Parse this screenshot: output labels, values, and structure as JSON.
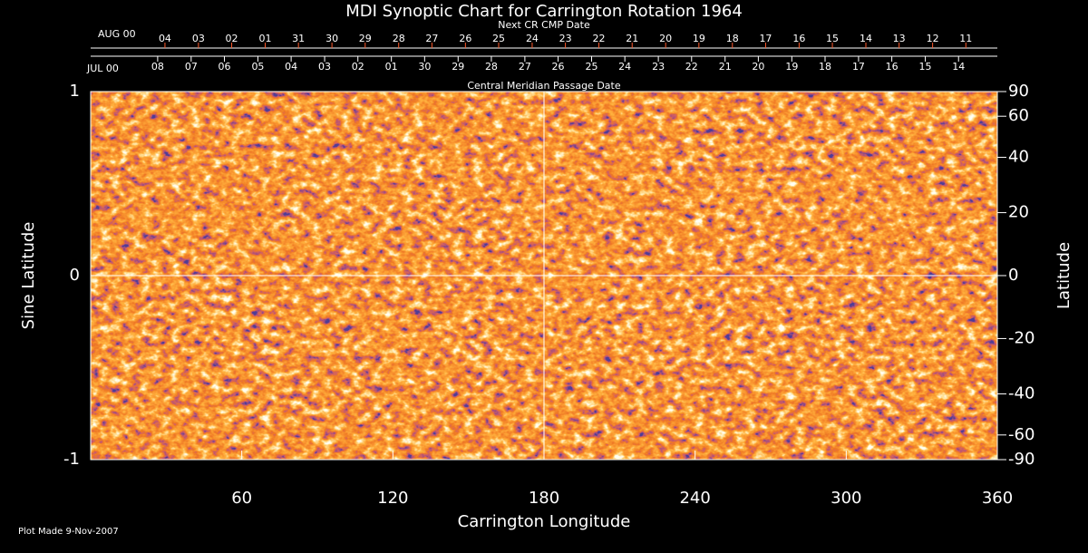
{
  "chart_data": {
    "type": "map",
    "title": "MDI Synoptic Chart for Carrington Rotation 1964",
    "xlabel": "Carrington Longitude",
    "ylabel": "Sine Latitude",
    "y2label": "Latitude",
    "y2scale": "sine",
    "footer": "Plot Made  9-Nov-2007",
    "xlim": [
      0,
      360
    ],
    "xticks": [
      60,
      120,
      180,
      240,
      300,
      360
    ],
    "ylim": [
      -1,
      1
    ],
    "yticks": [
      -1,
      0,
      1
    ],
    "y2ticks": [
      90,
      60,
      40,
      20,
      0,
      -20,
      -40,
      -60,
      -90
    ],
    "crosshair": {
      "x": 180,
      "y": 0
    },
    "top_axes": [
      {
        "title": "Next CR CMP Date",
        "start_label": "AUG 00",
        "color": "#ff5a2a",
        "ticks": [
          {
            "value": 29.5,
            "label": "04"
          },
          {
            "value": 42.8,
            "label": "03"
          },
          {
            "value": 56.0,
            "label": "02"
          },
          {
            "value": 69.3,
            "label": "01"
          },
          {
            "value": 82.5,
            "label": "31"
          },
          {
            "value": 95.8,
            "label": "30"
          },
          {
            "value": 109.0,
            "label": "29"
          },
          {
            "value": 122.3,
            "label": "28"
          },
          {
            "value": 135.5,
            "label": "27"
          },
          {
            "value": 148.8,
            "label": "26"
          },
          {
            "value": 162.0,
            "label": "25"
          },
          {
            "value": 175.3,
            "label": "24"
          },
          {
            "value": 188.5,
            "label": "23"
          },
          {
            "value": 201.8,
            "label": "22"
          },
          {
            "value": 215.0,
            "label": "21"
          },
          {
            "value": 228.3,
            "label": "20"
          },
          {
            "value": 241.5,
            "label": "19"
          },
          {
            "value": 254.8,
            "label": "18"
          },
          {
            "value": 268.0,
            "label": "17"
          },
          {
            "value": 281.3,
            "label": "16"
          },
          {
            "value": 294.5,
            "label": "15"
          },
          {
            "value": 307.8,
            "label": "14"
          },
          {
            "value": 321.0,
            "label": "13"
          },
          {
            "value": 334.3,
            "label": "12"
          },
          {
            "value": 347.5,
            "label": "11"
          }
        ]
      },
      {
        "title": "Central Meridian Passage Date",
        "start_label": "JUL 00",
        "color": "#ffffff",
        "ticks": [
          {
            "value": 26.6,
            "label": "08"
          },
          {
            "value": 39.9,
            "label": "07"
          },
          {
            "value": 53.1,
            "label": "06"
          },
          {
            "value": 66.4,
            "label": "05"
          },
          {
            "value": 79.6,
            "label": "04"
          },
          {
            "value": 92.9,
            "label": "03"
          },
          {
            "value": 106.1,
            "label": "02"
          },
          {
            "value": 119.4,
            "label": "01"
          },
          {
            "value": 132.6,
            "label": "30"
          },
          {
            "value": 145.9,
            "label": "29"
          },
          {
            "value": 159.1,
            "label": "28"
          },
          {
            "value": 172.4,
            "label": "27"
          },
          {
            "value": 185.6,
            "label": "26"
          },
          {
            "value": 198.9,
            "label": "25"
          },
          {
            "value": 212.1,
            "label": "24"
          },
          {
            "value": 225.4,
            "label": "23"
          },
          {
            "value": 238.6,
            "label": "22"
          },
          {
            "value": 251.9,
            "label": "21"
          },
          {
            "value": 265.1,
            "label": "20"
          },
          {
            "value": 278.4,
            "label": "19"
          },
          {
            "value": 291.6,
            "label": "18"
          },
          {
            "value": 304.9,
            "label": "17"
          },
          {
            "value": 318.1,
            "label": "16"
          },
          {
            "value": 331.4,
            "label": "15"
          },
          {
            "value": 344.6,
            "label": "14"
          }
        ]
      }
    ]
  }
}
